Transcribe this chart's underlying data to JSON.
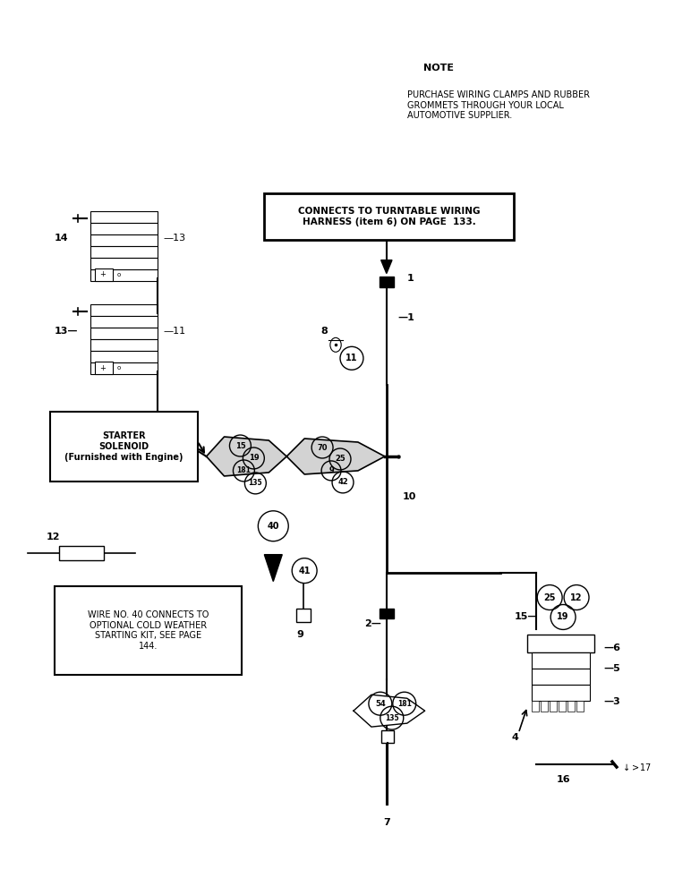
{
  "bg_color": "#ffffff",
  "fig_w": 7.72,
  "fig_h": 10.0,
  "dpi": 100,
  "note_title": "NOTE",
  "note_text": "PURCHASE WIRING CLAMPS AND RUBBER\nGROMMETS THROUGH YOUR LOCAL\nAUTOMOTIVE SUPPLIER.",
  "callout_text": "CONNECTS TO TURNTABLE WIRING\nHARNESS (item 6) ON PAGE  133.",
  "starter_text": "STARTER\nSOLENOID\n(Furnished with Engine)",
  "wire40_text": "WIRE NO. 40 CONNECTS TO\nOPTIONAL COLD WEATHER\nSTARTING KIT, SEE PAGE\n144."
}
